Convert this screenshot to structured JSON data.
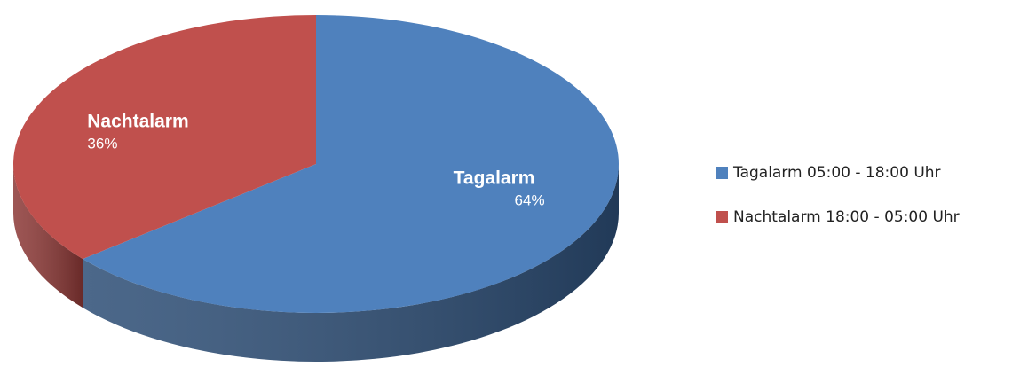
{
  "chart_data": {
    "type": "pie",
    "categories": [
      "Tagalarm 05:00 - 18:00 Uhr",
      "Nachtalarm 18:00 - 05:00 Uhr"
    ],
    "slice_labels": [
      "Tagalarm",
      "Nachtalarm"
    ],
    "values": [
      64,
      36
    ],
    "value_labels": [
      "64%",
      "36%"
    ],
    "colors": [
      "#4f81bd",
      "#c0504d"
    ],
    "side_colors": [
      "#2c4d75",
      "#8c3836"
    ],
    "legend": "right"
  }
}
